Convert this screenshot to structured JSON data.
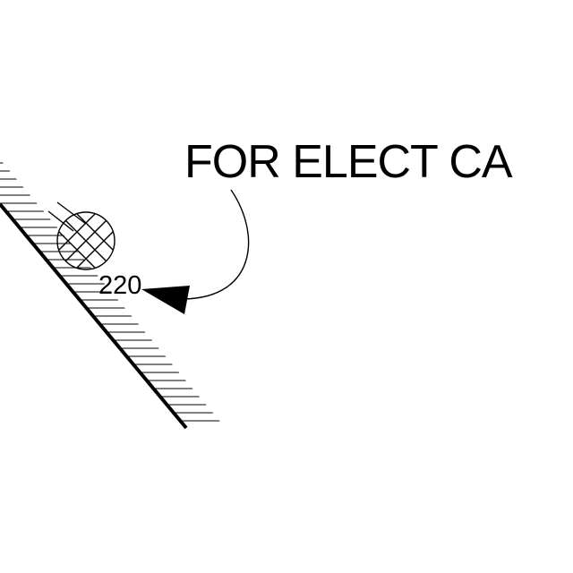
{
  "drawing": {
    "note_text": "FOR ELECT CA",
    "reference_label": "220",
    "line_color": "#000000",
    "background_color": "#ffffff"
  }
}
